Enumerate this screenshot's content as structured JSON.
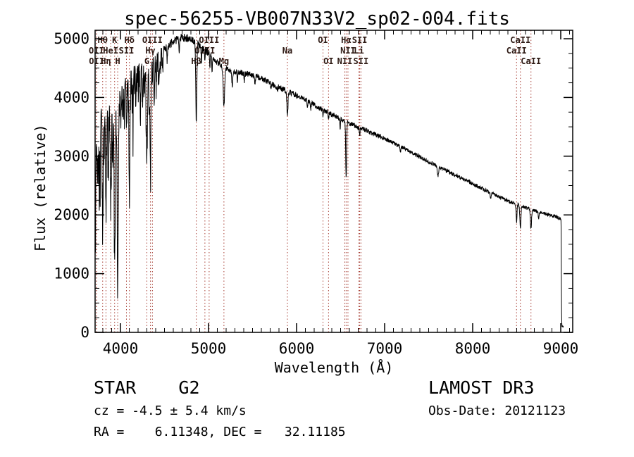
{
  "title": "spec-56255-VB007N33V2_sp02-004.fits",
  "footer": {
    "class_label": "STAR    G2",
    "cz_label": "cz = -4.5 ± 5.4 km/s",
    "radec_label": "RA =    6.11348, DEC =   32.11185",
    "survey_label": "LAMOST DR3",
    "obsdate_label": "Obs-Date: 20121123"
  },
  "chart_data": {
    "type": "line",
    "title": "spec-56255-VB007N33V2_sp02-004.fits",
    "xlabel": "Wavelength (Å)",
    "ylabel": "Flux (relative)",
    "xlim": [
      3712,
      9136
    ],
    "ylim": [
      0,
      5144
    ],
    "xticks": [
      4000,
      5000,
      6000,
      7000,
      8000,
      9000
    ],
    "yticks": [
      0,
      1000,
      2000,
      3000,
      4000,
      5000
    ],
    "x_minor_step": 100,
    "y_minor_step": 250,
    "grid": false,
    "legend": null,
    "line_color": "#000000",
    "marker_line_color": "#a63c32",
    "label_color": "#2e1a14",
    "spectral_lines": [
      {
        "label": "Hθ",
        "wavelength": 3798.0,
        "row": 1
      },
      {
        "label": "K",
        "wavelength": 3933.7,
        "row": 1
      },
      {
        "label": "Hδ",
        "wavelength": 4101.7,
        "row": 1
      },
      {
        "label": "OIII",
        "wavelength": 4363.0,
        "row": 1
      },
      {
        "label": "OIII",
        "wavelength": 5007.0,
        "row": 1
      },
      {
        "label": "OI",
        "wavelength": 6300.0,
        "row": 1
      },
      {
        "label": "Hα",
        "wavelength": 6562.8,
        "row": 1
      },
      {
        "label": "SII",
        "wavelength": 6716.4,
        "row": 1
      },
      {
        "label": "CaII",
        "wavelength": 8542.0,
        "row": 1
      },
      {
        "label": "OII",
        "wavelength": 3727.0,
        "row": 2
      },
      {
        "label": "HeI",
        "wavelength": 3889.0,
        "row": 2
      },
      {
        "label": "SII",
        "wavelength": 4068.0,
        "row": 2
      },
      {
        "label": "Hγ",
        "wavelength": 4340.5,
        "row": 2
      },
      {
        "label": "OIII",
        "wavelength": 4959.0,
        "row": 2
      },
      {
        "label": "Na",
        "wavelength": 5896.0,
        "row": 2
      },
      {
        "label": "NII",
        "wavelength": 6583.5,
        "row": 2
      },
      {
        "label": "Li",
        "wavelength": 6708.0,
        "row": 2
      },
      {
        "label": "CaII",
        "wavelength": 8498.0,
        "row": 2
      },
      {
        "label": "OII",
        "wavelength": 3729.0,
        "row": 3
      },
      {
        "label": "Hη",
        "wavelength": 3835.4,
        "row": 3
      },
      {
        "label": "H",
        "wavelength": 3968.5,
        "row": 3
      },
      {
        "label": "G",
        "wavelength": 4300.0,
        "row": 3
      },
      {
        "label": "Hβ",
        "wavelength": 4861.3,
        "row": 3
      },
      {
        "label": "Mg",
        "wavelength": 5175.0,
        "row": 3
      },
      {
        "label": "OI",
        "wavelength": 6363.0,
        "row": 3
      },
      {
        "label": "NII",
        "wavelength": 6548.0,
        "row": 3
      },
      {
        "label": "SII",
        "wavelength": 6730.8,
        "row": 3
      },
      {
        "label": "CaII",
        "wavelength": 8662.0,
        "row": 3
      }
    ],
    "continuum_points": [
      [
        3712,
        3550
      ],
      [
        3780,
        3620
      ],
      [
        3850,
        3700
      ],
      [
        3920,
        3760
      ],
      [
        3980,
        3900
      ],
      [
        4020,
        4120
      ],
      [
        4080,
        4280
      ],
      [
        4150,
        4400
      ],
      [
        4250,
        4480
      ],
      [
        4380,
        4620
      ],
      [
        4500,
        4820
      ],
      [
        4600,
        4960
      ],
      [
        4700,
        5020
      ],
      [
        4780,
        5010
      ],
      [
        4860,
        4940
      ],
      [
        4940,
        4840
      ],
      [
        5000,
        4760
      ],
      [
        5080,
        4620
      ],
      [
        5180,
        4500
      ],
      [
        5300,
        4440
      ],
      [
        5450,
        4400
      ],
      [
        5600,
        4330
      ],
      [
        5750,
        4210
      ],
      [
        5900,
        4100
      ],
      [
        6000,
        4040
      ],
      [
        6150,
        3920
      ],
      [
        6300,
        3790
      ],
      [
        6450,
        3670
      ],
      [
        6600,
        3560
      ],
      [
        6800,
        3430
      ],
      [
        7000,
        3300
      ],
      [
        7200,
        3150
      ],
      [
        7400,
        2990
      ],
      [
        7600,
        2830
      ],
      [
        7800,
        2680
      ],
      [
        8000,
        2530
      ],
      [
        8200,
        2380
      ],
      [
        8400,
        2240
      ],
      [
        8600,
        2120
      ],
      [
        8800,
        2030
      ],
      [
        8950,
        1970
      ],
      [
        9004,
        1930
      ],
      [
        9007,
        800
      ],
      [
        9010,
        250
      ],
      [
        9014,
        110
      ],
      [
        9030,
        95
      ]
    ],
    "absorption_features": [
      [
        3716,
        1800,
        3
      ],
      [
        3727,
        700,
        4
      ],
      [
        3737,
        900,
        3
      ],
      [
        3750,
        1000,
        3
      ],
      [
        3760,
        1400,
        3
      ],
      [
        3770,
        1200,
        3
      ],
      [
        3798,
        1700,
        5
      ],
      [
        3815,
        700,
        3
      ],
      [
        3835,
        1600,
        5
      ],
      [
        3860,
        1100,
        3
      ],
      [
        3889,
        1600,
        5
      ],
      [
        3910,
        700,
        3
      ],
      [
        3934,
        2650,
        6
      ],
      [
        3969,
        3150,
        6
      ],
      [
        4005,
        500,
        3
      ],
      [
        4026,
        600,
        3
      ],
      [
        4045,
        500,
        3
      ],
      [
        4068,
        800,
        4
      ],
      [
        4102,
        1900,
        6
      ],
      [
        4132,
        500,
        3
      ],
      [
        4144,
        600,
        3
      ],
      [
        4172,
        400,
        3
      ],
      [
        4226,
        700,
        4
      ],
      [
        4250,
        500,
        3
      ],
      [
        4271,
        500,
        3
      ],
      [
        4300,
        1400,
        7
      ],
      [
        4325,
        700,
        3
      ],
      [
        4340,
        1700,
        6
      ],
      [
        4363,
        400,
        3
      ],
      [
        4383,
        600,
        3
      ],
      [
        4405,
        450,
        3
      ],
      [
        4435,
        350,
        3
      ],
      [
        4455,
        300,
        3
      ],
      [
        4481,
        350,
        3
      ],
      [
        4530,
        250,
        4
      ],
      [
        4668,
        250,
        4
      ],
      [
        4861,
        1300,
        6
      ],
      [
        4920,
        250,
        4
      ],
      [
        4957,
        200,
        3
      ],
      [
        5015,
        250,
        3
      ],
      [
        5040,
        300,
        3
      ],
      [
        5175,
        650,
        8
      ],
      [
        5270,
        300,
        5
      ],
      [
        5328,
        180,
        4
      ],
      [
        5406,
        150,
        4
      ],
      [
        5528,
        150,
        4
      ],
      [
        5710,
        120,
        4
      ],
      [
        5785,
        100,
        4
      ],
      [
        5896,
        400,
        6
      ],
      [
        6122,
        100,
        4
      ],
      [
        6162,
        100,
        4
      ],
      [
        6300,
        110,
        4
      ],
      [
        6363,
        90,
        4
      ],
      [
        6495,
        150,
        4
      ],
      [
        6563,
        960,
        5
      ],
      [
        6717,
        120,
        4
      ],
      [
        7180,
        80,
        5
      ],
      [
        7605,
        160,
        8
      ],
      [
        8205,
        100,
        5
      ],
      [
        8498,
        300,
        5
      ],
      [
        8542,
        380,
        6
      ],
      [
        8662,
        330,
        6
      ],
      [
        8750,
        120,
        5
      ]
    ],
    "noise": {
      "seed": 20121123,
      "sample_step": 2.5,
      "bands": [
        [
          3712,
          3960,
          260
        ],
        [
          3960,
          4200,
          180
        ],
        [
          4200,
          4480,
          130
        ],
        [
          4480,
          5000,
          70
        ],
        [
          5000,
          6000,
          52
        ],
        [
          6000,
          7000,
          42
        ],
        [
          7000,
          8200,
          34
        ],
        [
          8200,
          9004,
          30
        ],
        [
          9004,
          9136,
          12
        ]
      ],
      "blue_spike_limit": 4480
    }
  }
}
